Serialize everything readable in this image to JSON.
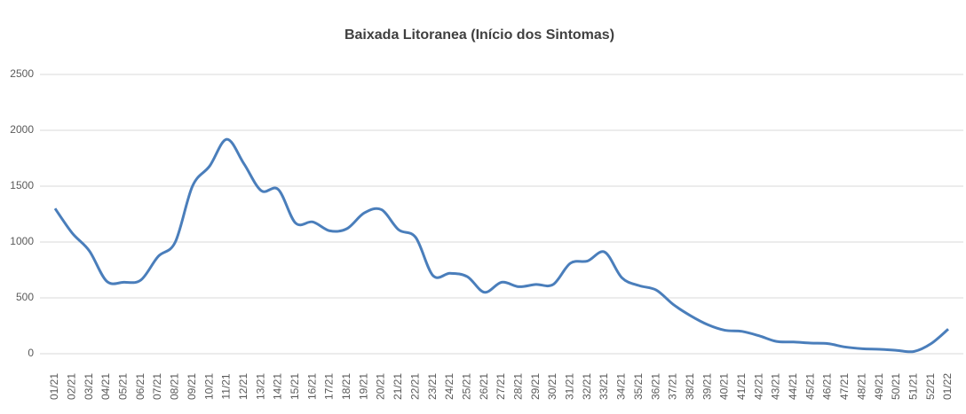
{
  "chart_data": {
    "type": "line",
    "title": "Baixada Litoranea (Início dos Sintomas)",
    "categories": [
      "01/21",
      "02/21",
      "03/21",
      "04/21",
      "05/21",
      "06/21",
      "07/21",
      "08/21",
      "09/21",
      "10/21",
      "11/21",
      "12/21",
      "13/21",
      "14/21",
      "15/21",
      "16/21",
      "17/21",
      "18/21",
      "19/21",
      "20/21",
      "21/21",
      "22/21",
      "23/21",
      "24/21",
      "25/21",
      "26/21",
      "27/21",
      "28/21",
      "29/21",
      "30/21",
      "31/21",
      "32/21",
      "33/21",
      "34/21",
      "35/21",
      "36/21",
      "37/21",
      "38/21",
      "39/21",
      "40/21",
      "41/21",
      "42/21",
      "43/21",
      "44/21",
      "45/21",
      "46/21",
      "47/21",
      "48/21",
      "49/21",
      "50/21",
      "51/21",
      "52/21",
      "01/22"
    ],
    "series": [
      {
        "color": "#4a7ebb",
        "values": [
          1300,
          1080,
          920,
          650,
          640,
          660,
          870,
          1000,
          1500,
          1680,
          1920,
          1700,
          1460,
          1470,
          1170,
          1180,
          1100,
          1120,
          1260,
          1290,
          1110,
          1040,
          700,
          720,
          690,
          550,
          640,
          600,
          620,
          620,
          810,
          830,
          910,
          680,
          610,
          570,
          440,
          340,
          260,
          210,
          200,
          160,
          110,
          105,
          95,
          90,
          60,
          45,
          40,
          30,
          20,
          90,
          220
        ]
      }
    ],
    "ylim": [
      0,
      2500
    ],
    "yticks": [
      0,
      500,
      1000,
      1500,
      2000,
      2500
    ],
    "grid": true
  }
}
